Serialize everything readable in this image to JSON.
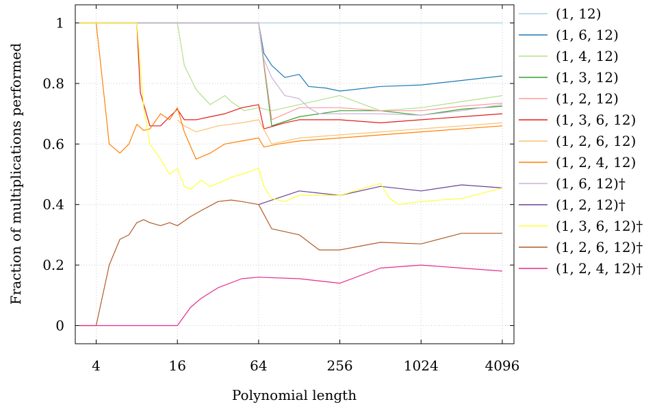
{
  "chart_data": {
    "type": "line",
    "title": "",
    "xlabel": "Polynomial length",
    "ylabel": "Fraction of multiplications performed",
    "x_scale": "log2",
    "xlim": [
      2.8,
      5000
    ],
    "ylim": [
      -0.06,
      1.06
    ],
    "x_ticks": [
      4,
      16,
      64,
      256,
      1024,
      4096
    ],
    "x_tick_labels": [
      "4",
      "16",
      "64",
      "256",
      "1024",
      "4096"
    ],
    "y_ticks": [
      0,
      0.2,
      0.4,
      0.6,
      0.8,
      1
    ],
    "y_tick_labels": [
      "0",
      "0.2",
      "0.4",
      "0.6",
      "0.8",
      "1"
    ],
    "grid": true,
    "legend_position": "right-outside",
    "series": [
      {
        "name": "(1, 12)",
        "color": "#a6cee3",
        "x": [
          3,
          4096
        ],
        "y": [
          1,
          1
        ]
      },
      {
        "name": "(1, 6, 12)",
        "color": "#1f78b4",
        "x": [
          3,
          64,
          70,
          80,
          100,
          128,
          150,
          200,
          256,
          512,
          1024,
          2048,
          4096
        ],
        "y": [
          1,
          1,
          0.9,
          0.86,
          0.82,
          0.83,
          0.79,
          0.785,
          0.775,
          0.79,
          0.795,
          0.81,
          0.825
        ]
      },
      {
        "name": "(1, 4, 12)",
        "color": "#b2df8a",
        "x": [
          3,
          16,
          18,
          22,
          28,
          36,
          40,
          50,
          64,
          80,
          128,
          256,
          512,
          1024,
          2048,
          4096
        ],
        "y": [
          1,
          1,
          0.86,
          0.78,
          0.73,
          0.76,
          0.74,
          0.71,
          0.72,
          0.71,
          0.73,
          0.76,
          0.71,
          0.72,
          0.74,
          0.76
        ]
      },
      {
        "name": "(1, 3, 12)",
        "color": "#33a02c",
        "x": [
          3,
          64,
          80,
          128,
          256,
          512,
          1024,
          2048,
          4096
        ],
        "y": [
          1,
          1,
          0.66,
          0.69,
          0.71,
          0.71,
          0.695,
          0.715,
          0.725
        ]
      },
      {
        "name": "(1, 2, 12)",
        "color": "#fb9a99",
        "x": [
          3,
          64,
          80,
          128,
          256,
          512,
          1024,
          2048,
          4096
        ],
        "y": [
          1,
          1,
          0.68,
          0.72,
          0.72,
          0.71,
          0.71,
          0.725,
          0.735
        ]
      },
      {
        "name": "(1, 3, 6, 12)",
        "color": "#e31a1c",
        "x": [
          3,
          8,
          8.5,
          10,
          12,
          14,
          16,
          18,
          22,
          28,
          36,
          48,
          64,
          70,
          100,
          128,
          256,
          512,
          1024,
          2048,
          4096
        ],
        "y": [
          1,
          1,
          0.77,
          0.66,
          0.66,
          0.69,
          0.715,
          0.68,
          0.68,
          0.69,
          0.7,
          0.72,
          0.73,
          0.65,
          0.67,
          0.68,
          0.68,
          0.67,
          0.68,
          0.69,
          0.7
        ]
      },
      {
        "name": "(1, 2, 6, 12)",
        "color": "#fdbf6f",
        "x": [
          16,
          18,
          22,
          32,
          48,
          64,
          80,
          128,
          256,
          512,
          1024,
          2048,
          4096
        ],
        "y": [
          0.68,
          0.66,
          0.64,
          0.66,
          0.67,
          0.68,
          0.6,
          0.62,
          0.63,
          0.64,
          0.65,
          0.66,
          0.67
        ]
      },
      {
        "name": "(1, 2, 4, 12)",
        "color": "#ff7f00",
        "x": [
          3,
          4,
          4.5,
          5,
          6,
          7,
          8,
          9,
          10,
          12,
          14,
          16,
          18,
          22,
          28,
          36,
          48,
          64,
          70,
          90,
          128,
          256,
          512,
          1024,
          2048,
          4096
        ],
        "y": [
          1,
          1,
          0.79,
          0.6,
          0.57,
          0.6,
          0.665,
          0.645,
          0.65,
          0.7,
          0.68,
          0.72,
          0.64,
          0.55,
          0.57,
          0.6,
          0.61,
          0.62,
          0.59,
          0.6,
          0.61,
          0.62,
          0.63,
          0.64,
          0.65,
          0.66
        ]
      },
      {
        "name": "(1, 6, 12)†",
        "color": "#cab2d6",
        "x": [
          3,
          64,
          70,
          80,
          100,
          128,
          150,
          180,
          256,
          512,
          1024,
          2048,
          4096
        ],
        "y": [
          1,
          1,
          0.88,
          0.82,
          0.76,
          0.75,
          0.72,
          0.7,
          0.7,
          0.7,
          0.695,
          0.71,
          0.73
        ]
      },
      {
        "name": "(1, 2, 12)†",
        "color": "#6a3d9a",
        "x": [
          64,
          128,
          256,
          512,
          1024,
          2048,
          4096
        ],
        "y": [
          0.4,
          0.445,
          0.43,
          0.46,
          0.445,
          0.465,
          0.455
        ]
      },
      {
        "name": "(1, 3, 6, 12)†",
        "color": "#ffff33",
        "x": [
          3,
          8,
          9,
          10,
          12,
          14,
          16,
          18,
          20,
          24,
          28,
          32,
          40,
          48,
          56,
          64,
          70,
          80,
          100,
          128,
          256,
          512,
          600,
          700,
          1024,
          2048,
          4096
        ],
        "y": [
          1,
          1,
          0.72,
          0.6,
          0.55,
          0.5,
          0.52,
          0.46,
          0.45,
          0.48,
          0.46,
          0.47,
          0.49,
          0.5,
          0.51,
          0.52,
          0.46,
          0.42,
          0.41,
          0.43,
          0.43,
          0.47,
          0.42,
          0.4,
          0.41,
          0.42,
          0.455
        ]
      },
      {
        "name": "(1, 2, 6, 12)†",
        "color": "#b15928",
        "x": [
          3,
          4,
          5,
          6,
          7,
          8,
          9,
          10,
          12,
          14,
          16,
          20,
          24,
          32,
          40,
          48,
          64,
          80,
          128,
          180,
          256,
          512,
          1024,
          2048,
          4096
        ],
        "y": [
          0,
          0,
          0.2,
          0.285,
          0.3,
          0.34,
          0.35,
          0.34,
          0.33,
          0.34,
          0.33,
          0.36,
          0.38,
          0.41,
          0.415,
          0.41,
          0.4,
          0.32,
          0.3,
          0.25,
          0.25,
          0.275,
          0.27,
          0.305,
          0.305
        ]
      },
      {
        "name": "(1, 2, 4, 12)†",
        "color": "#e7298a",
        "x": [
          3,
          16,
          20,
          24,
          32,
          48,
          64,
          128,
          256,
          512,
          1024,
          2048,
          4096
        ],
        "y": [
          0,
          0,
          0.06,
          0.09,
          0.125,
          0.155,
          0.16,
          0.155,
          0.14,
          0.19,
          0.2,
          0.19,
          0.18
        ]
      }
    ]
  }
}
